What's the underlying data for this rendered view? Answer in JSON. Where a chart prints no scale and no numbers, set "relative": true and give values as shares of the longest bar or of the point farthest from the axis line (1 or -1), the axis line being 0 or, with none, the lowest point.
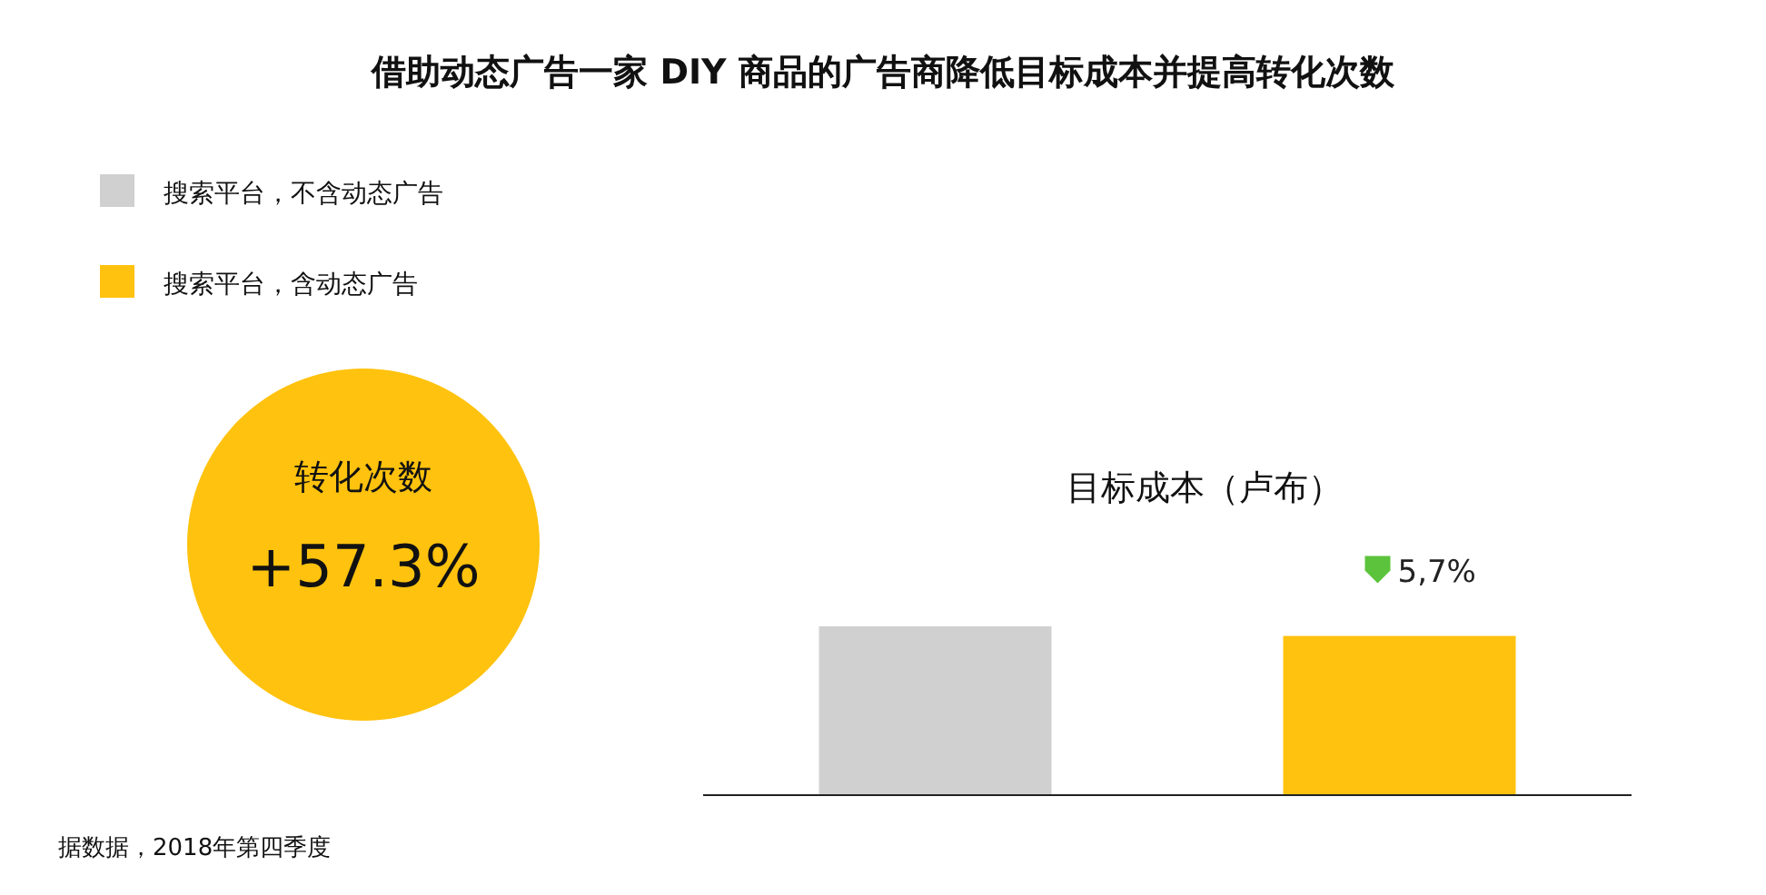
{
  "chart_data": {
    "type": "bar",
    "title": "借助动态广告一家 DIY 商品的广告商降低目标成本并提高转化次数",
    "subtitle": "目标成本（卢布）",
    "categories": [
      null,
      null
    ],
    "relative": true,
    "stacked": true,
    "legend": "top left",
    "series": [
      {
        "name": "搜索平台，不含动态广告",
        "color": "#d0d0d0",
        "values": [
          1,
          null
        ]
      },
      {
        "name": "搜索平台，含动态广告",
        "color": "#ffc20e",
        "values": [
          null,
          0.943
        ]
      }
    ],
    "annotations": [
      "转化次数",
      "+57.3%",
      "5,7%",
      "据数据，2018年第四季度"
    ]
  }
}
